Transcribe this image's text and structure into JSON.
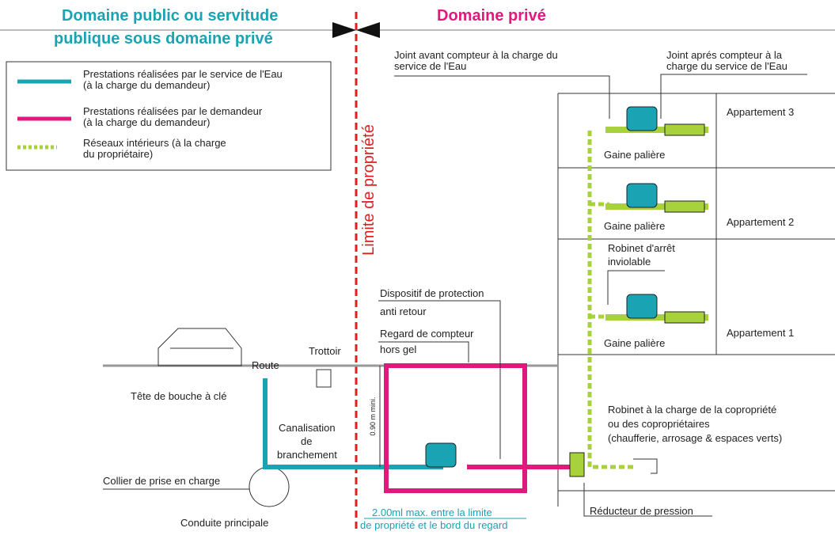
{
  "header": {
    "public": [
      "Domaine public ou servitude",
      "publique sous domaine privé"
    ],
    "private": "Domaine privé"
  },
  "legend": [
    {
      "lines": [
        "Prestations réalisées par le service de l'Eau",
        "(à la charge du demandeur)"
      ]
    },
    {
      "lines": [
        "Prestations réalisées par le demandeur",
        "(à la charge du demandeur)"
      ]
    },
    {
      "lines": [
        "Réseaux intérieurs (à la charge",
        "du propriétaire)"
      ]
    }
  ],
  "property_limit": "Limite de propriété",
  "labels": {
    "joint_avant": [
      "Joint avant compteur à la charge du",
      "service de l'Eau"
    ],
    "joint_apres": [
      "Joint aprés compteur à la",
      "charge du service de l'Eau"
    ],
    "apartments": [
      "Appartement 3",
      "Appartement 2",
      "Appartement 1"
    ],
    "gaine": [
      "Gaine palière",
      "Gaine palière",
      "Gaine palière"
    ],
    "robinet_arret": [
      "Robinet d'arrêt",
      "inviolable"
    ],
    "dispositif": [
      "Dispositif de protection",
      "anti retour"
    ],
    "regard": [
      "Regard de compteur",
      "hors gel"
    ],
    "trottoir": "Trottoir",
    "route": "Route",
    "tete": "Tête de bouche à clé",
    "canalisation": [
      "Canalisation",
      "de",
      "branchement"
    ],
    "depth": "0.90 m mini.",
    "collier": "Collier de prise en charge",
    "conduite": "Conduite principale",
    "robinet_copro": [
      "Robinet à la charge de la copropriété",
      "ou des copropriétaires",
      "(chaufferie, arrosage & espaces verts)"
    ],
    "distance": [
      "2.00ml max. entre la limite",
      "de propriété et le bord du regard"
    ],
    "reducteur": "Réducteur de pression"
  }
}
